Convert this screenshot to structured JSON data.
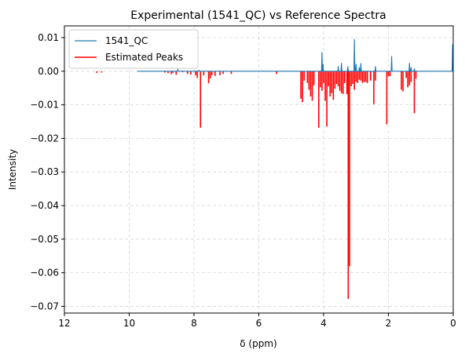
{
  "chart_data": {
    "type": "line",
    "title": "Experimental (1541_QC) vs Reference Spectra",
    "xlabel": "δ (ppm)",
    "ylabel": "Intensity",
    "xlim": [
      12,
      0
    ],
    "ylim": [
      -0.072,
      0.0135
    ],
    "x_reversed": true,
    "grid": true,
    "legend_position": "top-left",
    "xticks": [
      12,
      10,
      8,
      6,
      4,
      2,
      0
    ],
    "xtick_labels": [
      "12",
      "10",
      "8",
      "6",
      "4",
      "2",
      "0"
    ],
    "yticks": [
      0.01,
      0.0,
      -0.01,
      -0.02,
      -0.03,
      -0.04,
      -0.05,
      -0.06,
      -0.07
    ],
    "ytick_labels": [
      "0.01",
      "0.00",
      "−0.01",
      "−0.02",
      "−0.03",
      "−0.04",
      "−0.05",
      "−0.06",
      "−0.07"
    ],
    "series": [
      {
        "name": "1541_QC",
        "style": "line",
        "color": "#1f77b4",
        "baseline_range": [
          9.75,
          0.0
        ],
        "peaks": [
          {
            "x": 8.5,
            "y": 0.0005
          },
          {
            "x": 7.85,
            "y": 0.0003
          },
          {
            "x": 4.05,
            "y": 0.0057
          },
          {
            "x": 4.02,
            "y": 0.0022
          },
          {
            "x": 3.55,
            "y": 0.0015
          },
          {
            "x": 3.45,
            "y": 0.0025
          },
          {
            "x": 3.25,
            "y": 0.0015
          },
          {
            "x": 3.05,
            "y": 0.0096
          },
          {
            "x": 3.0,
            "y": 0.0022
          },
          {
            "x": 2.9,
            "y": 0.0012
          },
          {
            "x": 2.85,
            "y": 0.0024
          },
          {
            "x": 2.4,
            "y": 0.0015
          },
          {
            "x": 1.9,
            "y": 0.0045
          },
          {
            "x": 1.35,
            "y": 0.0025
          },
          {
            "x": 1.3,
            "y": 0.0012
          },
          {
            "x": 1.2,
            "y": 0.0008
          },
          {
            "x": 0.02,
            "y": 0.008
          }
        ]
      },
      {
        "name": "Estimated Peaks",
        "style": "sticks",
        "color": "#ff0000",
        "peaks": [
          {
            "x": 11.0,
            "y": -0.0005
          },
          {
            "x": 10.85,
            "y": -0.0004
          },
          {
            "x": 8.9,
            "y": -0.0004
          },
          {
            "x": 8.8,
            "y": -0.0006
          },
          {
            "x": 8.7,
            "y": -0.0009
          },
          {
            "x": 8.65,
            "y": -0.0005
          },
          {
            "x": 8.55,
            "y": -0.0011
          },
          {
            "x": 8.35,
            "y": -0.0003
          },
          {
            "x": 8.2,
            "y": -0.0008
          },
          {
            "x": 8.1,
            "y": -0.001
          },
          {
            "x": 7.95,
            "y": -0.0012
          },
          {
            "x": 7.9,
            "y": -0.002
          },
          {
            "x": 7.8,
            "y": -0.0168
          },
          {
            "x": 7.7,
            "y": -0.0012
          },
          {
            "x": 7.55,
            "y": -0.0036
          },
          {
            "x": 7.5,
            "y": -0.0022
          },
          {
            "x": 7.45,
            "y": -0.0012
          },
          {
            "x": 7.35,
            "y": -0.0014
          },
          {
            "x": 7.2,
            "y": -0.0012
          },
          {
            "x": 7.1,
            "y": -0.0008
          },
          {
            "x": 6.85,
            "y": -0.0008
          },
          {
            "x": 5.45,
            "y": -0.0008
          },
          {
            "x": 4.7,
            "y": -0.0082
          },
          {
            "x": 4.65,
            "y": -0.0092
          },
          {
            "x": 4.6,
            "y": -0.0028
          },
          {
            "x": 4.5,
            "y": -0.0035
          },
          {
            "x": 4.45,
            "y": -0.0055
          },
          {
            "x": 4.4,
            "y": -0.0075
          },
          {
            "x": 4.35,
            "y": -0.0088
          },
          {
            "x": 4.3,
            "y": -0.0042
          },
          {
            "x": 4.15,
            "y": -0.0168
          },
          {
            "x": 4.1,
            "y": -0.0048
          },
          {
            "x": 4.05,
            "y": -0.0058
          },
          {
            "x": 4.0,
            "y": -0.0035
          },
          {
            "x": 3.95,
            "y": -0.0088
          },
          {
            "x": 3.9,
            "y": -0.0165
          },
          {
            "x": 3.85,
            "y": -0.0045
          },
          {
            "x": 3.8,
            "y": -0.0075
          },
          {
            "x": 3.75,
            "y": -0.0065
          },
          {
            "x": 3.7,
            "y": -0.0085
          },
          {
            "x": 3.65,
            "y": -0.0052
          },
          {
            "x": 3.6,
            "y": -0.0038
          },
          {
            "x": 3.55,
            "y": -0.0045
          },
          {
            "x": 3.5,
            "y": -0.0058
          },
          {
            "x": 3.45,
            "y": -0.0065
          },
          {
            "x": 3.4,
            "y": -0.0068
          },
          {
            "x": 3.35,
            "y": -0.0035
          },
          {
            "x": 3.28,
            "y": -0.0068
          },
          {
            "x": 3.24,
            "y": -0.0678
          },
          {
            "x": 3.2,
            "y": -0.058
          },
          {
            "x": 3.15,
            "y": -0.0045
          },
          {
            "x": 3.1,
            "y": -0.0038
          },
          {
            "x": 3.05,
            "y": -0.0055
          },
          {
            "x": 3.0,
            "y": -0.0032
          },
          {
            "x": 2.95,
            "y": -0.0035
          },
          {
            "x": 2.9,
            "y": -0.0025
          },
          {
            "x": 2.85,
            "y": -0.0028
          },
          {
            "x": 2.8,
            "y": -0.0035
          },
          {
            "x": 2.75,
            "y": -0.0032
          },
          {
            "x": 2.7,
            "y": -0.0032
          },
          {
            "x": 2.65,
            "y": -0.0035
          },
          {
            "x": 2.55,
            "y": -0.0028
          },
          {
            "x": 2.45,
            "y": -0.0098
          },
          {
            "x": 2.4,
            "y": -0.0028
          },
          {
            "x": 2.05,
            "y": -0.0158
          },
          {
            "x": 2.0,
            "y": -0.0015
          },
          {
            "x": 1.95,
            "y": -0.0015
          },
          {
            "x": 1.6,
            "y": -0.0055
          },
          {
            "x": 1.55,
            "y": -0.006
          },
          {
            "x": 1.45,
            "y": -0.002
          },
          {
            "x": 1.4,
            "y": -0.0048
          },
          {
            "x": 1.35,
            "y": -0.0042
          },
          {
            "x": 1.3,
            "y": -0.0032
          },
          {
            "x": 1.2,
            "y": -0.0125
          },
          {
            "x": 1.15,
            "y": -0.0022
          }
        ]
      }
    ]
  }
}
